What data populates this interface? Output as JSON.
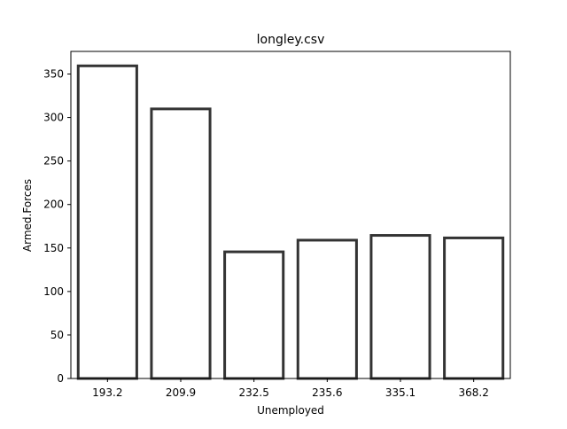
{
  "chart_data": {
    "type": "bar",
    "title": "longley.csv",
    "xlabel": "Unemployed",
    "ylabel": "Armed.Forces",
    "categories": [
      "193.2",
      "209.9",
      "232.5",
      "235.6",
      "335.1",
      "368.2"
    ],
    "values": [
      359.4,
      309.9,
      145.6,
      159.0,
      164.5,
      161.6
    ],
    "ylim": [
      0,
      376
    ],
    "yticks": [
      0,
      50,
      100,
      150,
      200,
      250,
      300,
      350
    ],
    "grid": false,
    "bar_fill": "#ffffff",
    "bar_edge": "#333333"
  }
}
